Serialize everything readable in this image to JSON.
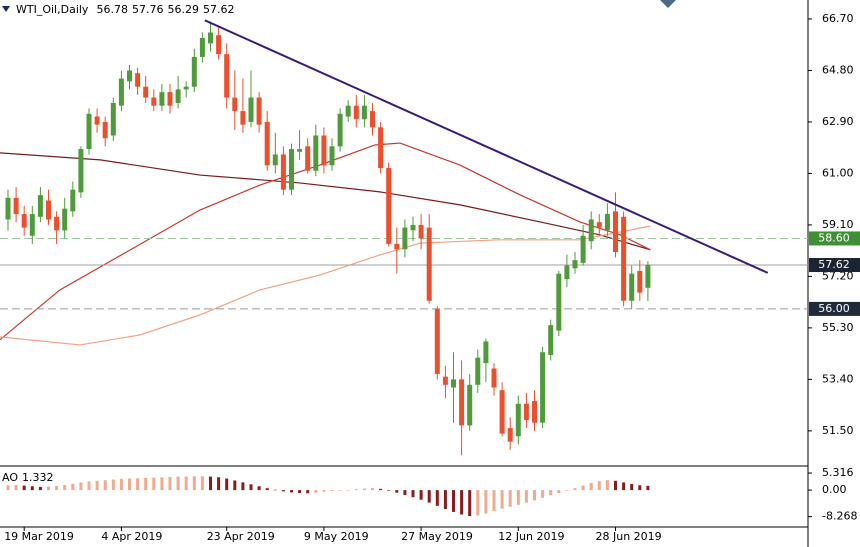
{
  "chart_data": {
    "type": "candlestick",
    "symbol": "WTI_Oil,Daily",
    "categories": [
      null,
      null,
      "19 Mar 2019",
      null,
      null,
      null,
      null,
      null,
      null,
      null,
      null,
      null,
      null,
      null,
      "4 Apr 2019",
      null,
      null,
      null,
      null,
      null,
      null,
      null,
      null,
      null,
      null,
      null,
      null,
      "23 Apr 2019",
      null,
      null,
      null,
      null,
      null,
      null,
      null,
      null,
      null,
      null,
      null,
      "9 May 2019",
      null,
      null,
      null,
      null,
      null,
      null,
      null,
      null,
      null,
      null,
      null,
      "27 May 2019",
      null,
      null,
      null,
      null,
      null,
      null,
      null,
      null,
      null,
      null,
      null,
      "12 Jun 2019",
      null,
      null,
      null,
      null,
      null,
      null,
      null,
      null,
      null,
      null,
      null,
      "28 Jun 2019",
      null,
      null,
      null,
      null
    ],
    "open": [
      59.3,
      60.1,
      59.5,
      58.7,
      59.4,
      60.0,
      59.4,
      58.9,
      59.6,
      60.3,
      61.9,
      63.1,
      62.9,
      62.4,
      63.5,
      64.4,
      64.7,
      64.2,
      63.8,
      63.5,
      64.0,
      63.6,
      64.1,
      64.2,
      65.3,
      65.8,
      66.1,
      65.4,
      63.8,
      63.3,
      62.9,
      63.8,
      62.9,
      61.3,
      61.7,
      60.4,
      61.8,
      62.0,
      61.1,
      62.4,
      61.3,
      62.0,
      63.1,
      63.5,
      63.0,
      63.3,
      62.7,
      61.2,
      58.4,
      58.2,
      58.9,
      59.1,
      59.0,
      56.0,
      53.5,
      53.1,
      53.4,
      51.7,
      53.2,
      54.0,
      53.8,
      53.0,
      51.6,
      51.3,
      52.5,
      52.6,
      51.8,
      54.3,
      55.2,
      57.1,
      57.5,
      57.7,
      58.5,
      59.2,
      58.9,
      59.6,
      59.4,
      56.3,
      57.4,
      56.78
    ],
    "high": [
      60.4,
      60.5,
      59.8,
      59.8,
      60.5,
      60.4,
      59.6,
      60.1,
      60.7,
      62.0,
      63.4,
      63.4,
      63.1,
      63.8,
      64.8,
      65.0,
      64.9,
      64.6,
      64.1,
      64.3,
      64.3,
      64.6,
      64.4,
      65.6,
      66.2,
      66.6,
      66.4,
      65.8,
      64.8,
      64.5,
      64.8,
      64.0,
      63.3,
      62.5,
      62.0,
      62.1,
      62.6,
      62.3,
      62.8,
      62.7,
      62.3,
      63.4,
      63.7,
      63.9,
      63.9,
      63.6,
      62.9,
      61.4,
      59.0,
      59.3,
      59.4,
      59.5,
      59.5,
      56.1,
      53.9,
      54.4,
      54.1,
      53.6,
      54.5,
      54.9,
      54.0,
      53.3,
      52.0,
      52.8,
      52.9,
      53.0,
      54.6,
      55.6,
      57.4,
      58.0,
      58.1,
      59.1,
      59.6,
      59.5,
      59.9,
      60.3,
      59.6,
      57.6,
      57.8,
      57.76
    ],
    "low": [
      58.9,
      59.2,
      58.7,
      58.4,
      59.2,
      59.1,
      58.4,
      58.6,
      59.4,
      60.1,
      61.7,
      62.5,
      62.0,
      62.2,
      63.3,
      64.1,
      63.9,
      63.6,
      63.3,
      63.3,
      63.2,
      63.4,
      63.8,
      64.0,
      65.1,
      65.5,
      65.2,
      63.4,
      62.6,
      62.5,
      62.7,
      62.5,
      61.1,
      61.0,
      60.2,
      60.2,
      61.5,
      61.0,
      60.9,
      61.0,
      61.1,
      61.8,
      62.9,
      62.7,
      62.7,
      62.4,
      61.0,
      58.3,
      57.3,
      57.9,
      58.5,
      58.2,
      56.2,
      53.4,
      52.7,
      51.8,
      50.6,
      51.5,
      52.9,
      53.3,
      52.8,
      51.3,
      50.8,
      51.0,
      51.6,
      51.5,
      51.6,
      54.1,
      55.0,
      56.8,
      57.3,
      57.6,
      58.2,
      58.7,
      58.7,
      57.9,
      56.1,
      56.0,
      56.3,
      56.29
    ],
    "close": [
      60.1,
      59.5,
      59.0,
      59.5,
      60.2,
      59.3,
      58.9,
      59.7,
      60.4,
      61.9,
      63.2,
      62.8,
      62.3,
      63.6,
      64.5,
      64.8,
      64.2,
      63.8,
      63.5,
      64.0,
      63.5,
      64.1,
      64.2,
      65.3,
      66.0,
      66.2,
      65.4,
      63.8,
      63.3,
      62.8,
      63.8,
      62.8,
      61.3,
      61.7,
      60.4,
      61.9,
      61.9,
      61.1,
      62.4,
      61.3,
      62.0,
      63.2,
      63.5,
      63.0,
      63.5,
      62.7,
      61.2,
      58.4,
      58.2,
      59.0,
      59.1,
      58.6,
      56.3,
      53.6,
      53.2,
      53.4,
      51.7,
      53.2,
      54.2,
      54.8,
      53.1,
      51.4,
      51.1,
      52.5,
      51.9,
      51.8,
      54.4,
      55.4,
      57.3,
      57.6,
      57.8,
      58.7,
      59.3,
      59.0,
      59.5,
      58.1,
      56.3,
      57.3,
      56.6,
      57.62
    ],
    "up_color": "#4f9a3a",
    "down_color": "#ec4f2c",
    "ylim": [
      50.24,
      67.4
    ],
    "yticks": [
      {
        "value": 66.7,
        "label": "66.70"
      },
      {
        "value": 64.8,
        "label": "64.80"
      },
      {
        "value": 62.9,
        "label": "62.90"
      },
      {
        "value": 61,
        "label": "61.00"
      },
      {
        "value": 59.1,
        "label": "59.10"
      },
      {
        "value": 57.2,
        "label": "57.20"
      },
      {
        "value": 55.3,
        "label": "55.30"
      },
      {
        "value": 53.4,
        "label": "53.40"
      },
      {
        "value": 51.5,
        "label": "51.50"
      }
    ],
    "moving_averages": [
      {
        "color": "#7a1a1a",
        "x": [
          -1,
          11.4,
          23.7,
          36,
          45.9,
          55.8,
          65.7,
          73.1,
          79.3
        ],
        "values": [
          61.76,
          61.5,
          60.94,
          60.65,
          60.32,
          59.84,
          59.21,
          58.73,
          58.18
        ]
      },
      {
        "color": "#c8382a",
        "x": [
          -1,
          6.4,
          15.1,
          23.7,
          31.1,
          38.5,
          45.3,
          48.4,
          55.8,
          63.2,
          70.6,
          75.6,
          79.3
        ],
        "values": [
          54.86,
          56.7,
          58.18,
          59.65,
          60.57,
          61.31,
          62.05,
          62.12,
          61.31,
          60.21,
          59.21,
          58.73,
          58.18
        ]
      },
      {
        "color": "#f4a07e",
        "x": [
          -1,
          8.9,
          16.3,
          23.7,
          31.1,
          38.5,
          45.9,
          50.9,
          60.7,
          70.6,
          75.6,
          79.3
        ],
        "values": [
          54.97,
          54.67,
          55.04,
          55.78,
          56.7,
          57.25,
          57.99,
          58.43,
          58.55,
          58.55,
          58.84,
          59.06
        ]
      }
    ],
    "trendline": {
      "color": "#3b1c7a",
      "x": [
        24.3,
        93.8
      ],
      "values": [
        66.65,
        57.33
      ]
    },
    "levels": [
      {
        "value": 58.6,
        "label": "58.60",
        "color": "#3f8f34",
        "line_color": "#9cc89a"
      },
      {
        "value": 56,
        "label": "56.00",
        "color": "#1f2a3a",
        "line_color": "#9a9a9a"
      }
    ],
    "price_line_color": "#a0a0a0",
    "price_label_color": "#1a2433",
    "indicator": {
      "type": "bar",
      "name": "AO",
      "values": [
        1.5,
        1.6,
        1.4,
        1.2,
        1.0,
        1.1,
        1.3,
        1.6,
        2.0,
        2.4,
        2.7,
        2.9,
        3.1,
        3.3,
        3.5,
        3.6,
        3.7,
        3.8,
        3.9,
        4.0,
        4.1,
        4.2,
        4.2,
        4.3,
        4.3,
        4.2,
        4.0,
        3.6,
        3.0,
        2.4,
        1.8,
        1.2,
        0.6,
        0.1,
        -0.4,
        -0.7,
        -0.9,
        -1.0,
        -0.8,
        -0.5,
        -0.3,
        -0.2,
        0.0,
        0.3,
        0.5,
        0.6,
        0.4,
        -0.2,
        -0.8,
        -1.5,
        -2.2,
        -3.0,
        -3.9,
        -4.9,
        -5.9,
        -6.8,
        -7.6,
        -8.1,
        -7.9,
        -7.3,
        -6.5,
        -5.8,
        -5.2,
        -4.6,
        -3.9,
        -3.2,
        -2.4,
        -1.6,
        -0.9,
        -0.2,
        0.6,
        1.4,
        2.2,
        2.8,
        3.1,
        2.9,
        2.4,
        1.9,
        1.5,
        1.332
      ],
      "up_color": "#f4a88c",
      "down_color": "#8b1a1a",
      "ylim": [
        -11.5,
        7.2
      ],
      "yticks": [
        5.316,
        {
          "value": 0,
          "label": "0.00"
        },
        -8.268
      ]
    }
  }
}
